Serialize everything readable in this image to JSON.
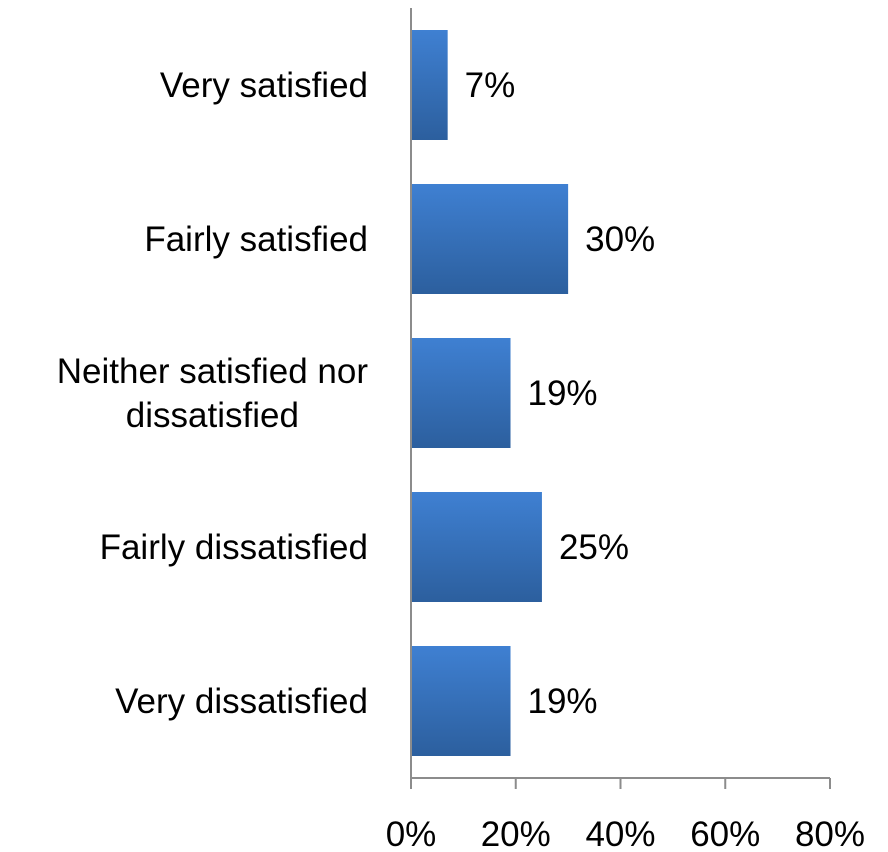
{
  "chart_data": {
    "type": "bar",
    "orientation": "horizontal",
    "categories": [
      [
        "Very satisfied"
      ],
      [
        "Fairly satisfied"
      ],
      [
        "Neither satisfied nor",
        "dissatisfied"
      ],
      [
        "Fairly dissatisfied"
      ],
      [
        "Very dissatisfied"
      ]
    ],
    "values": [
      7,
      30,
      19,
      25,
      19
    ],
    "data_labels": [
      "7%",
      "30%",
      "19%",
      "25%",
      "19%"
    ],
    "xlim": [
      0,
      80
    ],
    "x_ticks": [
      0,
      20,
      40,
      60,
      80
    ],
    "x_tick_labels": [
      "0%",
      "20%",
      "40%",
      "60%",
      "80%"
    ],
    "title": "",
    "xlabel": "",
    "ylabel": "",
    "grid": false,
    "legend": "none",
    "colors": {
      "bar_top": "#3f80d2",
      "bar_bottom": "#2c5f9e",
      "axis": "#8c8c8c"
    }
  }
}
